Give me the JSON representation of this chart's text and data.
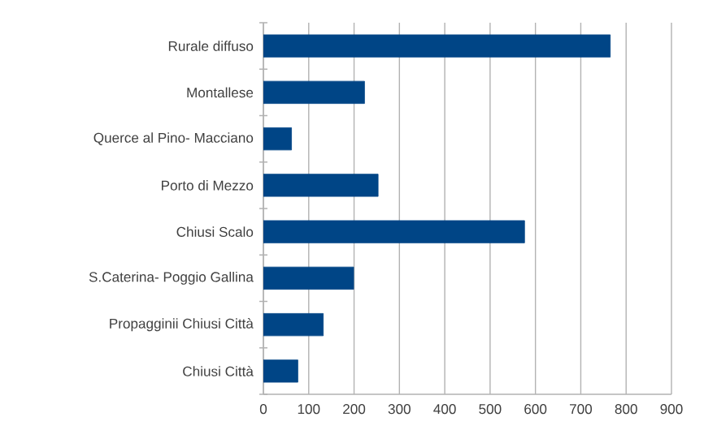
{
  "chart_data": {
    "type": "bar",
    "orientation": "horizontal",
    "categories": [
      "Rurale diffuso",
      "Montallese",
      "Querce al Pino- Macciano",
      "Porto di Mezzo",
      "Chiusi Scalo",
      "S.Caterina- Poggio Gallina",
      "Propagginii Chiusi Città",
      "Chiusi Città"
    ],
    "values": [
      765,
      223,
      62,
      253,
      576,
      199,
      132,
      76
    ],
    "color": "#004586",
    "xlim": [
      0,
      900
    ],
    "xticks": [
      0,
      100,
      200,
      300,
      400,
      500,
      600,
      700,
      800,
      900
    ],
    "grid": "x"
  }
}
